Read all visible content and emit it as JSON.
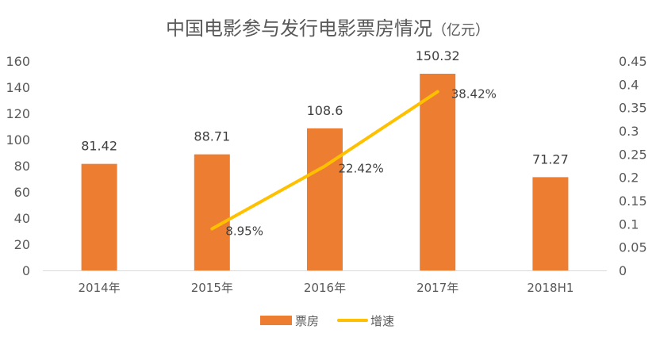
{
  "chart_data": {
    "type": "bar+line",
    "title": "中国电影参与发行电影票房情况",
    "title_unit": "（亿元）",
    "categories": [
      "2014年",
      "2015年",
      "2016年",
      "2017年",
      "2018H1"
    ],
    "series": [
      {
        "name": "票房",
        "type": "bar",
        "axis": "left",
        "values": [
          81.42,
          88.71,
          108.6,
          150.32,
          71.27
        ],
        "labels": [
          "81.42",
          "88.71",
          "108.6",
          "150.32",
          "71.27"
        ],
        "color": "#ED7D31"
      },
      {
        "name": "增速",
        "type": "line",
        "axis": "right",
        "values": [
          null,
          0.0895,
          0.2242,
          0.3842,
          null
        ],
        "labels": [
          "",
          "8.95%",
          "22.42%",
          "38.42%",
          ""
        ],
        "color": "#FFC000"
      }
    ],
    "y_left": {
      "min": 0,
      "max": 160,
      "ticks": [
        "0",
        "20",
        "40",
        "60",
        "80",
        "100",
        "120",
        "140",
        "160"
      ]
    },
    "y_right": {
      "min": 0,
      "max": 0.45,
      "ticks": [
        "0",
        "0.05",
        "0.1",
        "0.15",
        "0.2",
        "0.25",
        "0.3",
        "0.35",
        "0.4",
        "0.45"
      ]
    },
    "grid": false,
    "legend_position": "bottom"
  }
}
